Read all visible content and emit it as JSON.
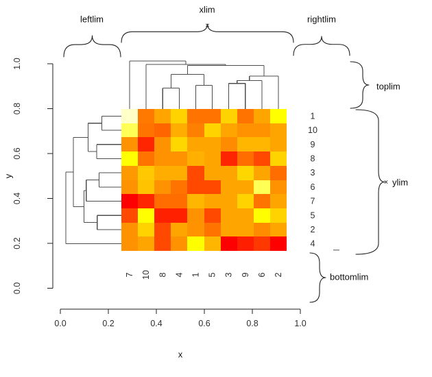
{
  "figure": {
    "description": "R heatmap plot with row and column dendrograms and margin-limit brace annotations",
    "background": "#FFFFFF"
  },
  "labels": {
    "leftlim": "leftlim",
    "xlim": "xlim",
    "rightlim": "rightlim",
    "toplim": "toplim",
    "ylim": "ylim",
    "bottomlim": "bottomlim"
  },
  "axes": {
    "x": {
      "title": "x",
      "ticks": [
        "0.0",
        "0.2",
        "0.4",
        "0.6",
        "0.8",
        "1.0"
      ]
    },
    "y": {
      "title": "y",
      "ticks": [
        "0.0",
        "0.2",
        "0.4",
        "0.6",
        "0.8",
        "1.0"
      ]
    }
  },
  "colors": {
    "dendrogram_line": "#4D4D4D",
    "axis_line": "#1F1F1F",
    "brace_line": "#1F1F1F",
    "index_label": "#30303A",
    "tick_label": "#2E2E2E"
  },
  "chart_data": {
    "type": "heatmap",
    "title": "",
    "xlabel": "x",
    "ylabel": "y",
    "x_axis": {
      "range": [
        0.0,
        1.0
      ],
      "tick_values": [
        0.0,
        0.2,
        0.4,
        0.6,
        0.8,
        1.0
      ]
    },
    "y_axis": {
      "range": [
        0.0,
        1.0
      ],
      "tick_values": [
        0.0,
        0.2,
        0.4,
        0.6,
        0.8,
        1.0
      ]
    },
    "heatmap_extent_data_units": {
      "x": [
        0.25,
        0.94
      ],
      "y": [
        0.17,
        0.8
      ]
    },
    "col_labels": [
      "7",
      "10",
      "8",
      "4",
      "1",
      "5",
      "3",
      "9",
      "6",
      "2"
    ],
    "row_labels": [
      "1",
      "10",
      "9",
      "8",
      "3",
      "6",
      "7",
      "5",
      "2",
      "4"
    ],
    "palette_note": "R heat.colors style mosaic (red to pale yellow), colors sampled per cell",
    "cell_colors": [
      [
        "#FFFFC8",
        "#FF7800",
        "#FFA500",
        "#FFD300",
        "#FF7300",
        "#FF7300",
        "#FFD300",
        "#FF7300",
        "#FFA500",
        "#FFFF00"
      ],
      [
        "#FFFF55",
        "#FF7300",
        "#FF6600",
        "#FFAD00",
        "#FF8000",
        "#FFD300",
        "#FFA500",
        "#FF9200",
        "#FF9200",
        "#FFA500"
      ],
      [
        "#FF9200",
        "#FF2500",
        "#FF9200",
        "#FFD700",
        "#FFA500",
        "#FFA500",
        "#FF8C00",
        "#FFB600",
        "#FFB600",
        "#FFA500"
      ],
      [
        "#FFFF00",
        "#FF7300",
        "#FF9200",
        "#FF9200",
        "#FFB000",
        "#FFA500",
        "#FF2500",
        "#FF6D00",
        "#FF4900",
        "#FFD300"
      ],
      [
        "#FF9900",
        "#FFC800",
        "#FFAD00",
        "#FFAD00",
        "#FF4900",
        "#FFA500",
        "#FFA500",
        "#FFD700",
        "#FFA500",
        "#FF6D00"
      ],
      [
        "#FF9200",
        "#FFC300",
        "#FF9200",
        "#FF7300",
        "#FF4900",
        "#FF4900",
        "#FFA500",
        "#FFA500",
        "#FFFF55",
        "#FF9200"
      ],
      [
        "#FF0000",
        "#FF2500",
        "#FF6D00",
        "#FF6D00",
        "#FFB600",
        "#FFA500",
        "#FFA500",
        "#FFD300",
        "#FF7300",
        "#FFA500"
      ],
      [
        "#FF4900",
        "#FFFF00",
        "#FF2000",
        "#FF2000",
        "#FF9200",
        "#FF4900",
        "#FFA500",
        "#FFA500",
        "#FFFF00",
        "#FFD300"
      ],
      [
        "#FF9200",
        "#FFD300",
        "#FF4900",
        "#FFA500",
        "#FF9200",
        "#FF7300",
        "#FFA500",
        "#FFA500",
        "#FF8C00",
        "#FFA500"
      ],
      [
        "#FF9200",
        "#FFA500",
        "#FF4900",
        "#FF9200",
        "#FFFF00",
        "#FFB600",
        "#FF0000",
        "#FF1E00",
        "#FF3800",
        "#FF0000"
      ]
    ],
    "col_dendrogram": {
      "note": "merge refs: L<label>=leaf, M<i>=earlier merge; h = pixel y of merge bar (smaller = higher)",
      "order": [
        "7",
        "10",
        "8",
        "4",
        "1",
        "5",
        "3",
        "9",
        "6",
        "2"
      ],
      "merges": [
        [
          "L8",
          "L4",
          128.3
        ],
        [
          "L1",
          "L5",
          124.3
        ],
        [
          "M0",
          "M1",
          108.3
        ],
        [
          "L3",
          "L9",
          121.7
        ],
        [
          "M3",
          "L6",
          117.3
        ],
        [
          "M4",
          "L2",
          111
        ],
        [
          "M2",
          "M5",
          95.5
        ],
        [
          "L10",
          "M6",
          94
        ],
        [
          "L7",
          "M7",
          89
        ]
      ]
    },
    "row_dendrogram": {
      "note": "merge refs: L<label>=leaf, M<i>=earlier merge; h = pixel x of merge bar (smaller = deeper)",
      "order": [
        "1",
        "10",
        "9",
        "8",
        "3",
        "6",
        "7",
        "5",
        "2",
        "4"
      ],
      "merges": [
        [
          "L1",
          "L10",
          148.3
        ],
        [
          "L9",
          "L8",
          141
        ],
        [
          "M0",
          "M1",
          128.3
        ],
        [
          "L3",
          "L6",
          144.3
        ],
        [
          "M3",
          "L7",
          125.7
        ],
        [
          "L5",
          "L2",
          141.7
        ],
        [
          "M4",
          "M5",
          122.5
        ],
        [
          "M2",
          "M6",
          107
        ],
        [
          "M7",
          "L4",
          96
        ]
      ]
    },
    "annotations": [
      "leftlim",
      "xlim",
      "rightlim",
      "toplim",
      "ylim",
      "bottomlim"
    ],
    "grid": false,
    "legend": false
  }
}
